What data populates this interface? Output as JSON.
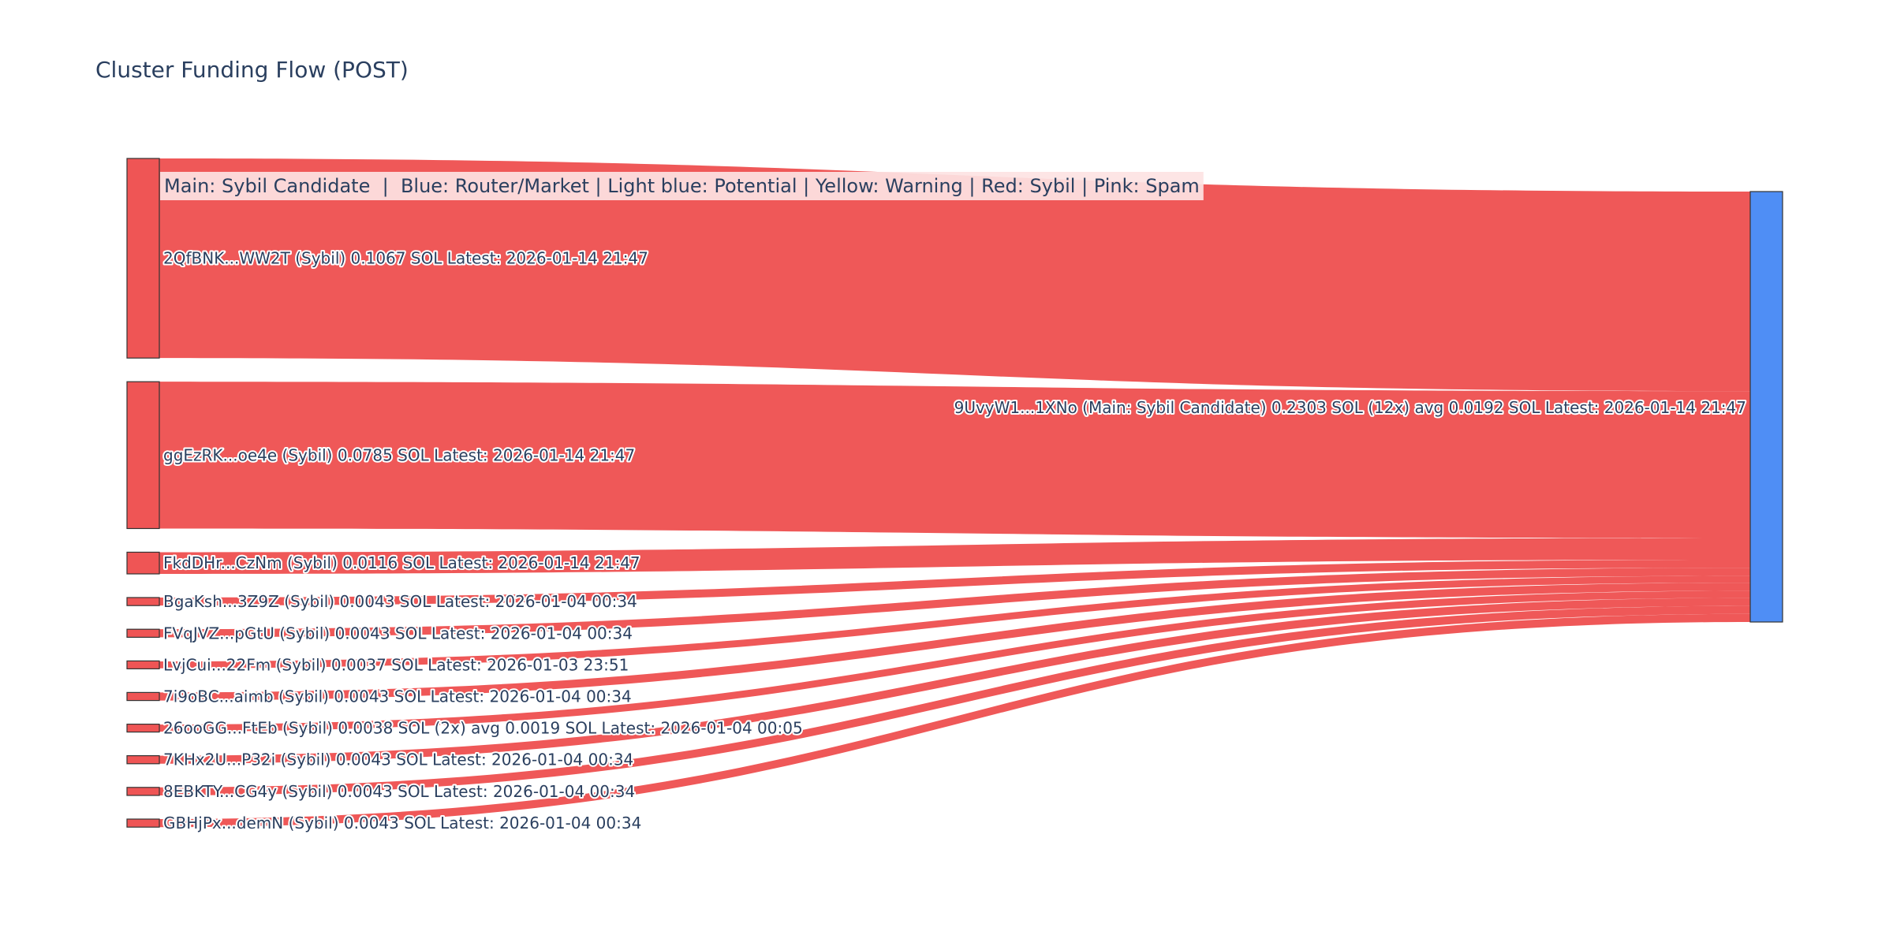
{
  "chart_data": {
    "type": "sankey",
    "title": "Cluster Funding Flow (POST)",
    "annotation": "Main: Sybil Candidate  |  Blue: Router/Market | Light blue: Potential | Yellow: Warning | Red: Sybil | Pink: Spam",
    "colors": {
      "sybil": "#ef5555",
      "main": "#4f8ef5",
      "border": "#333333",
      "annotation_bg": "#fde3e3"
    },
    "target": {
      "label": "9UvyW1...1XNo (Main: Sybil Candidate) 0.2303 SOL (12x) avg 0.0192 SOL Latest: 2026-01-14 21:47",
      "value": 0.2303,
      "category": "main"
    },
    "sources": [
      {
        "label": "2QfBNK...WW2T (Sybil) 0.1067 SOL Latest: 2026-01-14 21:47",
        "value": 0.1067,
        "category": "sybil"
      },
      {
        "label": "ggEzRK...oe4e (Sybil) 0.0785 SOL Latest: 2026-01-14 21:47",
        "value": 0.0785,
        "category": "sybil"
      },
      {
        "label": "FkdDHr...CzNm (Sybil) 0.0116 SOL Latest: 2026-01-14 21:47",
        "value": 0.0116,
        "category": "sybil"
      },
      {
        "label": "BgaKsh...3Z9Z (Sybil) 0.0043 SOL Latest: 2026-01-04 00:34",
        "value": 0.0043,
        "category": "sybil"
      },
      {
        "label": "FVqJVZ...pGtU (Sybil) 0.0043 SOL Latest: 2026-01-04 00:34",
        "value": 0.0043,
        "category": "sybil"
      },
      {
        "label": "LvjCui...22Fm (Sybil) 0.0037 SOL Latest: 2026-01-03 23:51",
        "value": 0.0037,
        "category": "sybil"
      },
      {
        "label": "7i9oBC...aimb (Sybil) 0.0043 SOL Latest: 2026-01-04 00:34",
        "value": 0.0043,
        "category": "sybil"
      },
      {
        "label": "26ooGG...FtEb (Sybil) 0.0038 SOL (2x) avg 0.0019 SOL Latest: 2026-01-04 00:05",
        "value": 0.0038,
        "category": "sybil"
      },
      {
        "label": "7KHx2U...P32i (Sybil) 0.0043 SOL Latest: 2026-01-04 00:34",
        "value": 0.0043,
        "category": "sybil"
      },
      {
        "label": "8EBKTY...CG4y (Sybil) 0.0043 SOL Latest: 2026-01-04 00:34",
        "value": 0.0043,
        "category": "sybil"
      },
      {
        "label": "GBHjPx...demN (Sybil) 0.0043 SOL Latest: 2026-01-04 00:34",
        "value": 0.0043,
        "category": "sybil"
      }
    ]
  }
}
